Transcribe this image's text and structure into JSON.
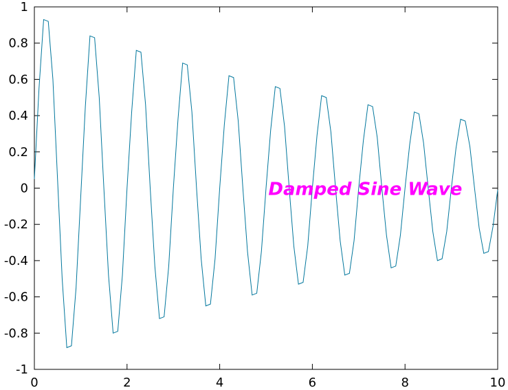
{
  "chart_data": {
    "type": "line",
    "title": "",
    "xlabel": "",
    "ylabel": "",
    "xlim": [
      0,
      10
    ],
    "ylim": [
      -1,
      1
    ],
    "x_ticks": [
      0,
      2,
      4,
      6,
      8,
      10
    ],
    "y_ticks": [
      -1,
      -0.8,
      -0.6,
      -0.4,
      -0.2,
      0,
      0.2,
      0.4,
      0.6,
      0.8,
      1
    ],
    "x_tick_labels": [
      "0",
      "2",
      "4",
      "6",
      "8",
      "10"
    ],
    "y_tick_labels": [
      "-1",
      "-0.8",
      "-0.6",
      "-0.4",
      "-0.2",
      "0",
      "0.2",
      "0.4",
      "0.6",
      "0.8",
      "1"
    ],
    "grid": false,
    "line_color": "#00769c",
    "annotation": {
      "text": "Damped Sine Wave",
      "x": 5.05,
      "y": 0,
      "color": "#ff00ff"
    },
    "series": [
      {
        "color": "#00769c",
        "points": [
          [
            0.0,
            0.05
          ],
          [
            0.1,
            0.55
          ],
          [
            0.2,
            0.93
          ],
          [
            0.3,
            0.92
          ],
          [
            0.4,
            0.6
          ],
          [
            0.5,
            0.05
          ],
          [
            0.6,
            -0.5
          ],
          [
            0.7,
            -0.88
          ],
          [
            0.8,
            -0.87
          ],
          [
            0.9,
            -0.55
          ],
          [
            1.0,
            -0.05
          ],
          [
            1.1,
            0.45
          ],
          [
            1.2,
            0.84
          ],
          [
            1.3,
            0.83
          ],
          [
            1.4,
            0.5
          ],
          [
            1.5,
            0.0
          ],
          [
            1.6,
            -0.48
          ],
          [
            1.7,
            -0.8
          ],
          [
            1.8,
            -0.79
          ],
          [
            1.9,
            -0.48
          ],
          [
            2.0,
            0.0
          ],
          [
            2.1,
            0.42
          ],
          [
            2.2,
            0.76
          ],
          [
            2.3,
            0.75
          ],
          [
            2.4,
            0.46
          ],
          [
            2.5,
            0.0
          ],
          [
            2.6,
            -0.43
          ],
          [
            2.7,
            -0.72
          ],
          [
            2.8,
            -0.71
          ],
          [
            2.9,
            -0.43
          ],
          [
            3.0,
            0.0
          ],
          [
            3.1,
            0.38
          ],
          [
            3.2,
            0.69
          ],
          [
            3.3,
            0.68
          ],
          [
            3.4,
            0.42
          ],
          [
            3.5,
            0.0
          ],
          [
            3.6,
            -0.39
          ],
          [
            3.7,
            -0.65
          ],
          [
            3.8,
            -0.64
          ],
          [
            3.9,
            -0.39
          ],
          [
            4.0,
            0.0
          ],
          [
            4.1,
            0.35
          ],
          [
            4.2,
            0.62
          ],
          [
            4.3,
            0.61
          ],
          [
            4.4,
            0.37
          ],
          [
            4.5,
            0.0
          ],
          [
            4.6,
            -0.35
          ],
          [
            4.7,
            -0.59
          ],
          [
            4.8,
            -0.58
          ],
          [
            4.9,
            -0.35
          ],
          [
            5.0,
            0.0
          ],
          [
            5.1,
            0.32
          ],
          [
            5.2,
            0.56
          ],
          [
            5.3,
            0.55
          ],
          [
            5.4,
            0.34
          ],
          [
            5.5,
            0.0
          ],
          [
            5.6,
            -0.32
          ],
          [
            5.7,
            -0.53
          ],
          [
            5.8,
            -0.52
          ],
          [
            5.9,
            -0.32
          ],
          [
            6.0,
            0.0
          ],
          [
            6.1,
            0.29
          ],
          [
            6.2,
            0.51
          ],
          [
            6.3,
            0.5
          ],
          [
            6.4,
            0.31
          ],
          [
            6.5,
            0.0
          ],
          [
            6.6,
            -0.29
          ],
          [
            6.7,
            -0.48
          ],
          [
            6.8,
            -0.47
          ],
          [
            6.9,
            -0.29
          ],
          [
            7.0,
            0.0
          ],
          [
            7.1,
            0.26
          ],
          [
            7.2,
            0.46
          ],
          [
            7.3,
            0.45
          ],
          [
            7.4,
            0.28
          ],
          [
            7.5,
            0.0
          ],
          [
            7.6,
            -0.26
          ],
          [
            7.7,
            -0.44
          ],
          [
            7.8,
            -0.43
          ],
          [
            7.9,
            -0.26
          ],
          [
            8.0,
            0.0
          ],
          [
            8.1,
            0.24
          ],
          [
            8.2,
            0.42
          ],
          [
            8.3,
            0.41
          ],
          [
            8.4,
            0.25
          ],
          [
            8.5,
            0.0
          ],
          [
            8.6,
            -0.24
          ],
          [
            8.7,
            -0.4
          ],
          [
            8.8,
            -0.39
          ],
          [
            8.9,
            -0.24
          ],
          [
            9.0,
            0.0
          ],
          [
            9.1,
            0.22
          ],
          [
            9.2,
            0.38
          ],
          [
            9.3,
            0.37
          ],
          [
            9.4,
            0.23
          ],
          [
            9.5,
            0.0
          ],
          [
            9.6,
            -0.22
          ],
          [
            9.7,
            -0.36
          ],
          [
            9.8,
            -0.35
          ],
          [
            9.9,
            -0.21
          ],
          [
            10.0,
            -0.01
          ]
        ]
      }
    ]
  }
}
